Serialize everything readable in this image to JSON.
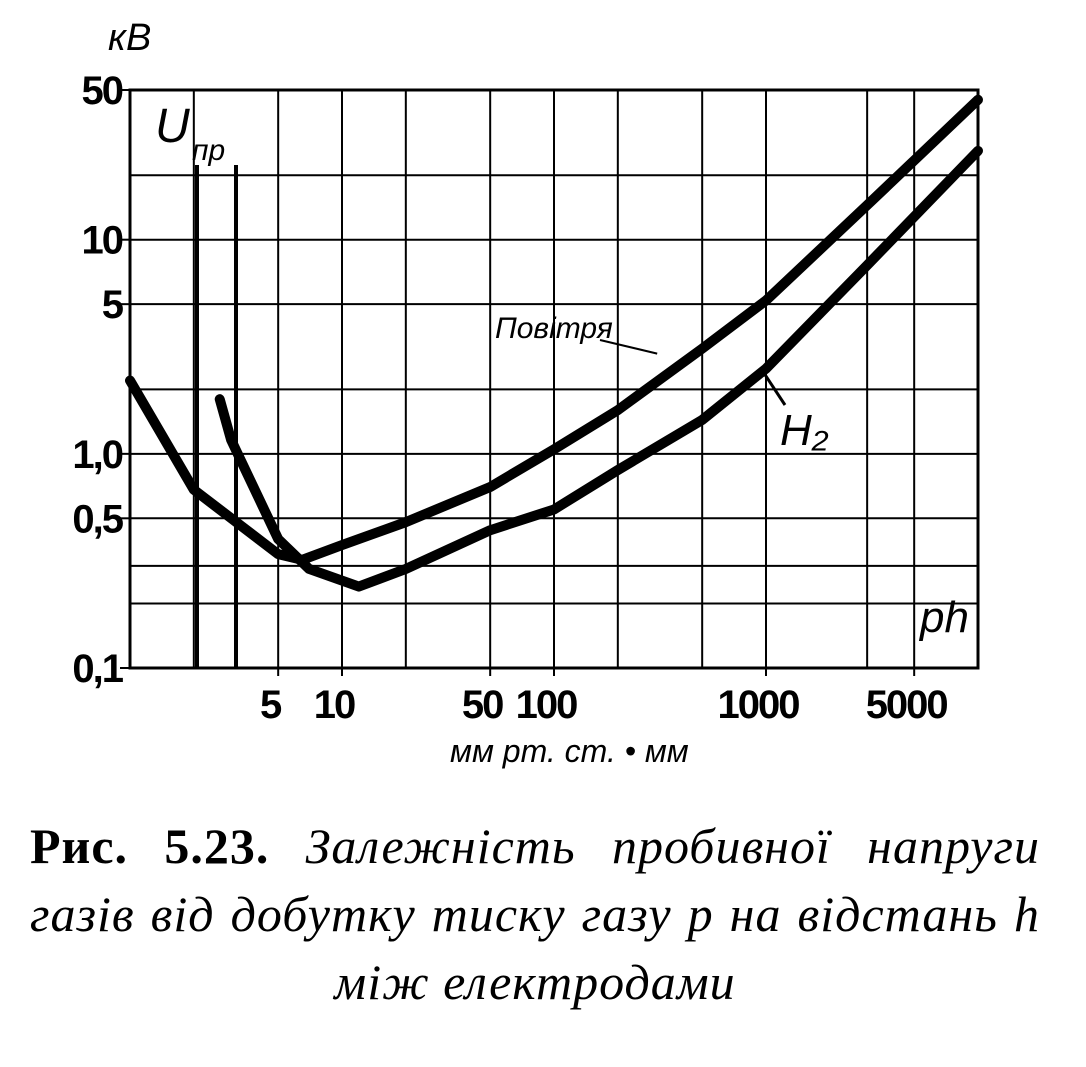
{
  "chart_data": {
    "type": "line",
    "ylabel_unit": "кВ",
    "ylabel": "U",
    "ylabel_sub": "пр",
    "xlabel_var": "ph",
    "xlabel": "мм рт. ст. • мм",
    "xlog": true,
    "ylog": true,
    "xlim": [
      1,
      10000
    ],
    "ylim": [
      0.1,
      50
    ],
    "xticks": [
      5,
      10,
      50,
      100,
      1000,
      5000
    ],
    "yticks": [
      {
        "value": 0.1,
        "label": "0,1"
      },
      {
        "value": 0.5,
        "label": "0,5"
      },
      {
        "value": 1,
        "label": "1,0"
      },
      5,
      10,
      50
    ],
    "xgrid": [
      2,
      5,
      10,
      20,
      50,
      100,
      200,
      500,
      1000,
      3000,
      5000
    ],
    "ygrid": [
      0.2,
      0.3,
      0.5,
      1,
      2,
      5,
      10,
      20
    ],
    "series": [
      {
        "name": "Повітря",
        "color": "#000000",
        "x": [
          1,
          2,
          5,
          6.5,
          10,
          20,
          50,
          100,
          200,
          500,
          1000,
          3000,
          10000
        ],
        "values": [
          2.2,
          0.68,
          0.34,
          0.32,
          0.375,
          0.48,
          0.7,
          1.05,
          1.6,
          3.1,
          5.2,
          14.5,
          45
        ]
      },
      {
        "name": "H₂",
        "color": "#000000",
        "x": [
          2.65,
          3,
          5,
          7,
          12,
          20,
          50,
          100,
          200,
          500,
          1000,
          3000,
          10000
        ],
        "values": [
          1.8,
          1.16,
          0.4,
          0.29,
          0.24,
          0.29,
          0.44,
          0.55,
          0.84,
          1.44,
          2.5,
          7.6,
          26
        ]
      }
    ],
    "caption_label": "Рис. 5.23.",
    "caption": "Залежність пробивної напруги газів від добутку тиску газу р на відстань h між електродами"
  }
}
